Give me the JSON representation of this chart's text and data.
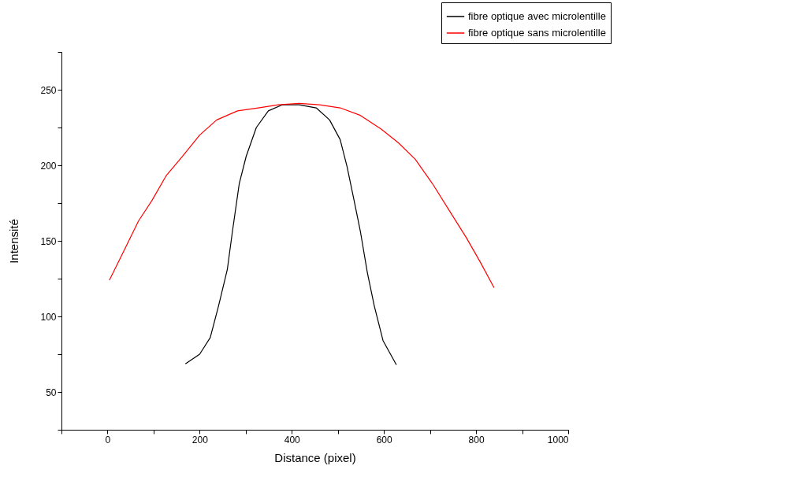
{
  "chart_data": {
    "type": "line",
    "xlabel": "Distance (pixel)",
    "ylabel": "Intensité",
    "xlim": [
      -100,
      1000
    ],
    "ylim": [
      25,
      275
    ],
    "xticks": [
      {
        "value": -100,
        "label": null
      },
      0,
      {
        "value": 100,
        "label": null
      },
      200,
      {
        "value": 300,
        "label": null
      },
      400,
      {
        "value": 500,
        "label": null
      },
      600,
      {
        "value": 700,
        "label": null
      },
      800,
      {
        "value": 900,
        "label": null
      },
      1000
    ],
    "yticks": [
      {
        "value": 25,
        "label": null
      },
      50,
      {
        "value": 75,
        "label": null
      },
      100,
      {
        "value": 125,
        "label": null
      },
      150,
      {
        "value": 175,
        "label": null
      },
      200,
      {
        "value": 225,
        "label": null
      },
      250,
      {
        "value": 275,
        "label": null
      }
    ],
    "grid": false,
    "legend": "top right",
    "marker": "none",
    "line_style": "solid",
    "series": [
      {
        "name": "fibre optique avec microlentille",
        "color": "#000000",
        "x": [
          169,
          200,
          223,
          241,
          260,
          271,
          286,
          301,
          323,
          349,
          379,
          416,
          453,
          482,
          505,
          520,
          535,
          549,
          564,
          579,
          598,
          627
        ],
        "values": [
          68.6,
          75,
          86,
          107,
          131,
          156,
          188,
          206,
          225,
          236,
          240,
          240,
          238,
          230,
          217,
          199,
          177,
          156,
          129,
          107,
          84,
          68
        ]
      },
      {
        "name": "fibre optique sans microlentille",
        "color": "#ff0000",
        "x": [
          4,
          30,
          67,
          97,
          127,
          163,
          200,
          237,
          282,
          327,
          371,
          416,
          460,
          505,
          549,
          594,
          631,
          668,
          705,
          742,
          779,
          809,
          839
        ],
        "values": [
          124,
          140,
          163,
          177,
          193,
          206,
          220,
          230,
          236,
          238,
          240,
          241,
          240,
          238,
          233,
          224,
          215,
          204,
          188,
          170,
          152,
          136,
          119
        ]
      }
    ]
  }
}
